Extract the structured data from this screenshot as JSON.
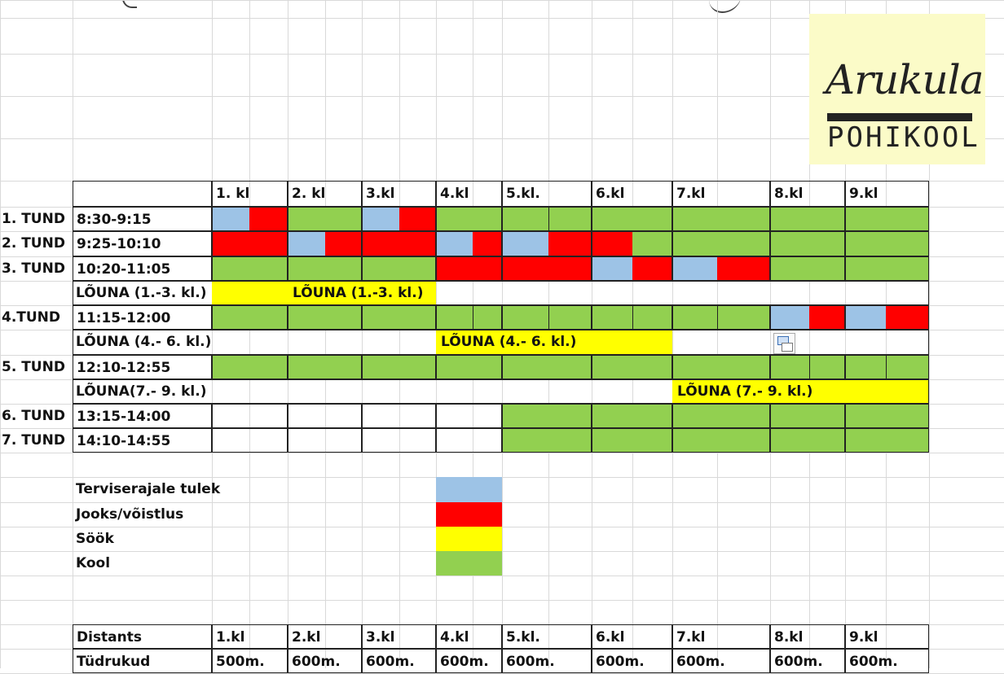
{
  "colors": {
    "arrive": "#9dc3e6",
    "race": "#ff0000",
    "lunch": "#ffff00",
    "school": "#92d050"
  },
  "logo": {
    "name": "Arukula",
    "sub": "POHIKOOL"
  },
  "schedule": {
    "classes": [
      "1. kl",
      "2. kl",
      "3.kl",
      "4.kl",
      "5.kl.",
      "6.kl",
      "7.kl",
      "8.kl",
      "9.kl"
    ],
    "rows": [
      {
        "lesson": "1. TUND",
        "time": "8:30-9:15"
      },
      {
        "lesson": "2. TUND",
        "time": "9:25-10:10"
      },
      {
        "lesson": "3. TUND",
        "time": "10:20-11:05"
      },
      {
        "lunch": "LÕUNA (1.-3. kl.)",
        "lunch_repeat": "LÕUNA (1.-3. kl.)"
      },
      {
        "lesson": "4.TUND",
        "time": "11:15-12:00"
      },
      {
        "lunch": "LÕUNA (4.- 6. kl.)",
        "lunch_repeat": "LÕUNA (4.- 6. kl.)"
      },
      {
        "lesson": "5. TUND",
        "time": "12:10-12:55"
      },
      {
        "lunch": "LÕUNA(7.- 9. kl.)",
        "lunch_repeat": "LÕUNA (7.- 9. kl.)"
      },
      {
        "lesson": "6. TUND",
        "time": "13:15-14:00"
      },
      {
        "lesson": "7. TUND",
        "time": "14:10-14:55"
      }
    ]
  },
  "legend": [
    {
      "label": "Terviserajale tulek",
      "color": "#9dc3e6"
    },
    {
      "label": "Jooks/võistlus",
      "color": "#ff0000"
    },
    {
      "label": "Söök",
      "color": "#ffff00"
    },
    {
      "label": "Kool",
      "color": "#92d050"
    }
  ],
  "distance": {
    "header": "Distants",
    "classes": [
      "1.kl",
      "2.kl",
      "3.kl",
      "4.kl",
      "5.kl.",
      "6.kl",
      "7.kl",
      "8.kl",
      "9.kl"
    ],
    "girls_label": "Tüdrukud",
    "girls": [
      "500m.",
      "600m.",
      "600m.",
      "600m.",
      "600m.",
      "600m.",
      "600m.",
      "600m.",
      "600m."
    ]
  }
}
